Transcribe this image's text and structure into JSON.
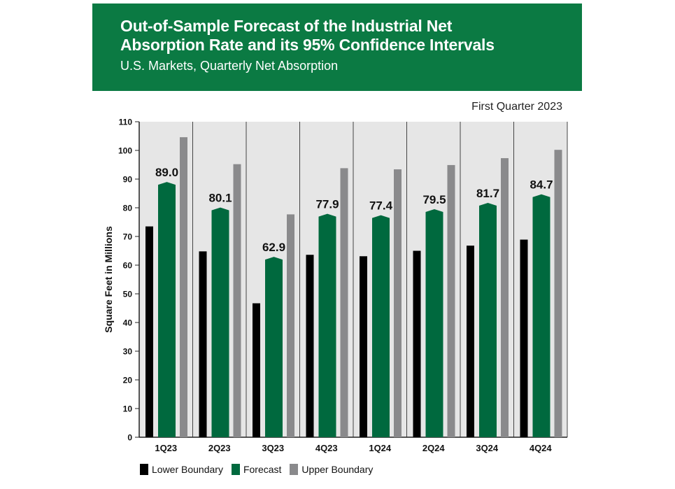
{
  "header": {
    "title": "Out-of-Sample Forecast of the Industrial Net\nAbsorption Rate and its 95% Confidence Intervals",
    "subtitle": "U.S. Markets, Quarterly Net Absorption"
  },
  "note": "First Quarter 2023",
  "colors": {
    "header_bg": "#0b7a43",
    "lower": "#000000",
    "forecast": "#00693e",
    "upper": "#8a8a8c",
    "plot_bg": "#e6e6e6"
  },
  "chart_data": {
    "type": "bar",
    "categories": [
      "1Q23",
      "2Q23",
      "3Q23",
      "4Q23",
      "1Q24",
      "2Q24",
      "3Q24",
      "4Q24"
    ],
    "series": [
      {
        "name": "Lower Boundary",
        "values": [
          73.5,
          64.8,
          46.7,
          63.6,
          63.1,
          65.0,
          66.8,
          68.9
        ]
      },
      {
        "name": "Forecast",
        "values": [
          89.0,
          80.1,
          62.9,
          77.9,
          77.4,
          79.5,
          81.7,
          84.7
        ]
      },
      {
        "name": "Upper Boundary",
        "values": [
          104.6,
          95.2,
          77.7,
          93.8,
          93.4,
          94.9,
          97.3,
          100.2
        ]
      }
    ],
    "data_labels": [
      "89.0",
      "80.1",
      "62.9",
      "77.9",
      "77.4",
      "79.5",
      "81.7",
      "84.7"
    ],
    "ylabel": "Square Feet in Millions",
    "xlabel": "",
    "ylim": [
      0,
      110
    ],
    "yticks": [
      0,
      10,
      20,
      30,
      40,
      50,
      60,
      70,
      80,
      90,
      100,
      110
    ],
    "grid": false,
    "legend_position": "bottom-left"
  }
}
